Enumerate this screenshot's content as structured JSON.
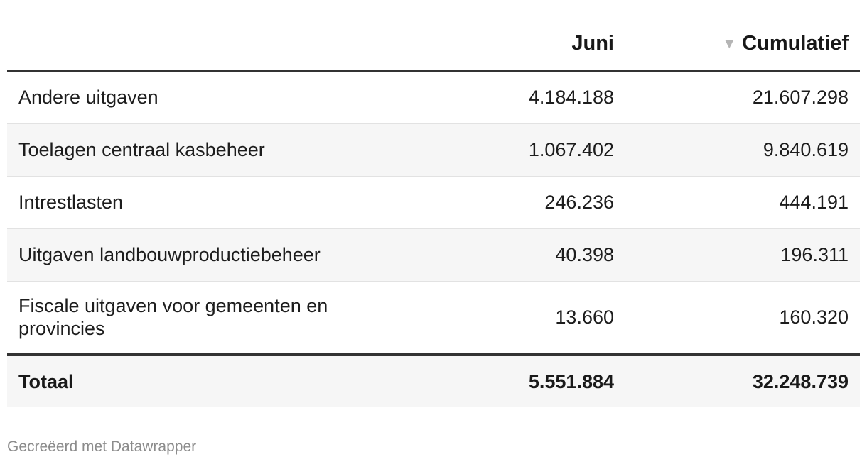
{
  "table": {
    "columns": {
      "label": "",
      "juni": "Juni",
      "cumulatief": "Cumulatief",
      "sort_indicator": "▼"
    },
    "rows": [
      {
        "label": "Andere uitgaven",
        "juni": "4.184.188",
        "cumulatief": "21.607.298"
      },
      {
        "label": "Toelagen centraal kasbeheer",
        "juni": "1.067.402",
        "cumulatief": "9.840.619"
      },
      {
        "label": "Intrestlasten",
        "juni": "246.236",
        "cumulatief": "444.191"
      },
      {
        "label": "Uitgaven landbouwproductiebeheer",
        "juni": "40.398",
        "cumulatief": "196.311"
      },
      {
        "label": "Fiscale uitgaven voor gemeenten en provincies",
        "juni": "13.660",
        "cumulatief": "160.320"
      }
    ],
    "total": {
      "label": "Totaal",
      "juni": "5.551.884",
      "cumulatief": "32.248.739"
    }
  },
  "footer": {
    "credit": "Gecreëerd met Datawrapper"
  }
}
